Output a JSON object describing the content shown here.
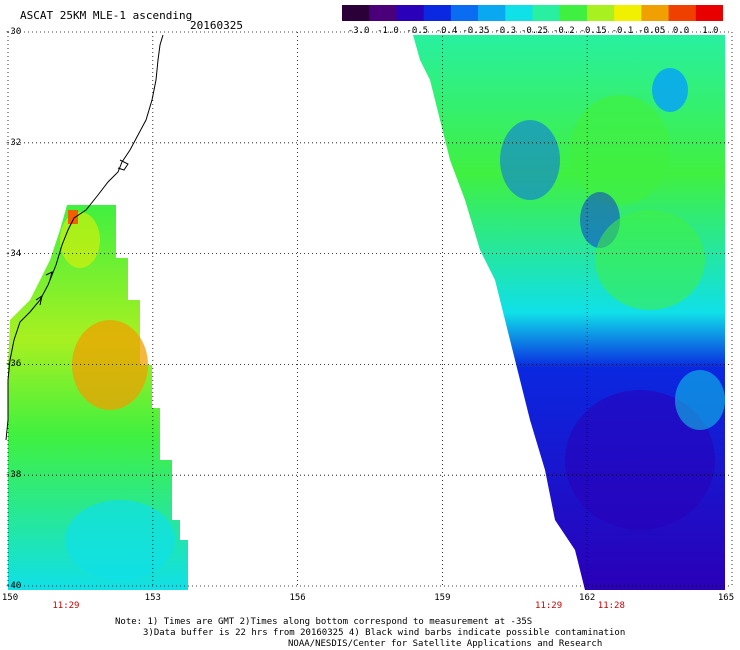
{
  "header": {
    "title": "ASCAT 25KM MLE-1 ascending",
    "date": "20160325"
  },
  "colorbar": {
    "tick_labels": [
      "-3.0",
      "-1.0",
      "-0.5",
      "-0.4",
      "-0.35",
      "-0.3",
      "-0.25",
      "-0.2",
      "-0.15",
      "-0.1",
      "-0.05",
      "0.0",
      "1.0"
    ],
    "colors": [
      "#2b0038",
      "#4a0078",
      "#2a00b8",
      "#0a28e0",
      "#0a6cf0",
      "#0aa8f0",
      "#10e0e8",
      "#28f0a0",
      "#40f040",
      "#a8f020",
      "#f0f000",
      "#f0a000",
      "#f04000",
      "#e80000"
    ]
  },
  "axes": {
    "lat_labels": [
      "-30",
      "-32",
      "-34",
      "-36",
      "-38",
      "-40"
    ],
    "lat_values": [
      -30,
      -32,
      -34,
      -36,
      -38,
      -40
    ],
    "lon_labels": [
      "150",
      "153",
      "156",
      "159",
      "162",
      "165"
    ],
    "lon_values": [
      150,
      153,
      156,
      159,
      162,
      165
    ],
    "lon_range": [
      150,
      165
    ],
    "lat_range": [
      -30,
      -40
    ],
    "grid": "dotted"
  },
  "pass_times": [
    {
      "label": "11:29",
      "lon": 151.2
    },
    {
      "label": "11:29",
      "lon": 161.2
    },
    {
      "label": "11:28",
      "lon": 162.5
    }
  ],
  "notes": {
    "line1": "Note: 1) Times are GMT 2)Times along bottom correspond to measurement at -35S",
    "line2": "3)Data buffer is 22 hrs from 20160325 4) Black wind barbs indicate possible contamination",
    "line3": "NOAA/NESDIS/Center for Satellite Applications and Research"
  }
}
